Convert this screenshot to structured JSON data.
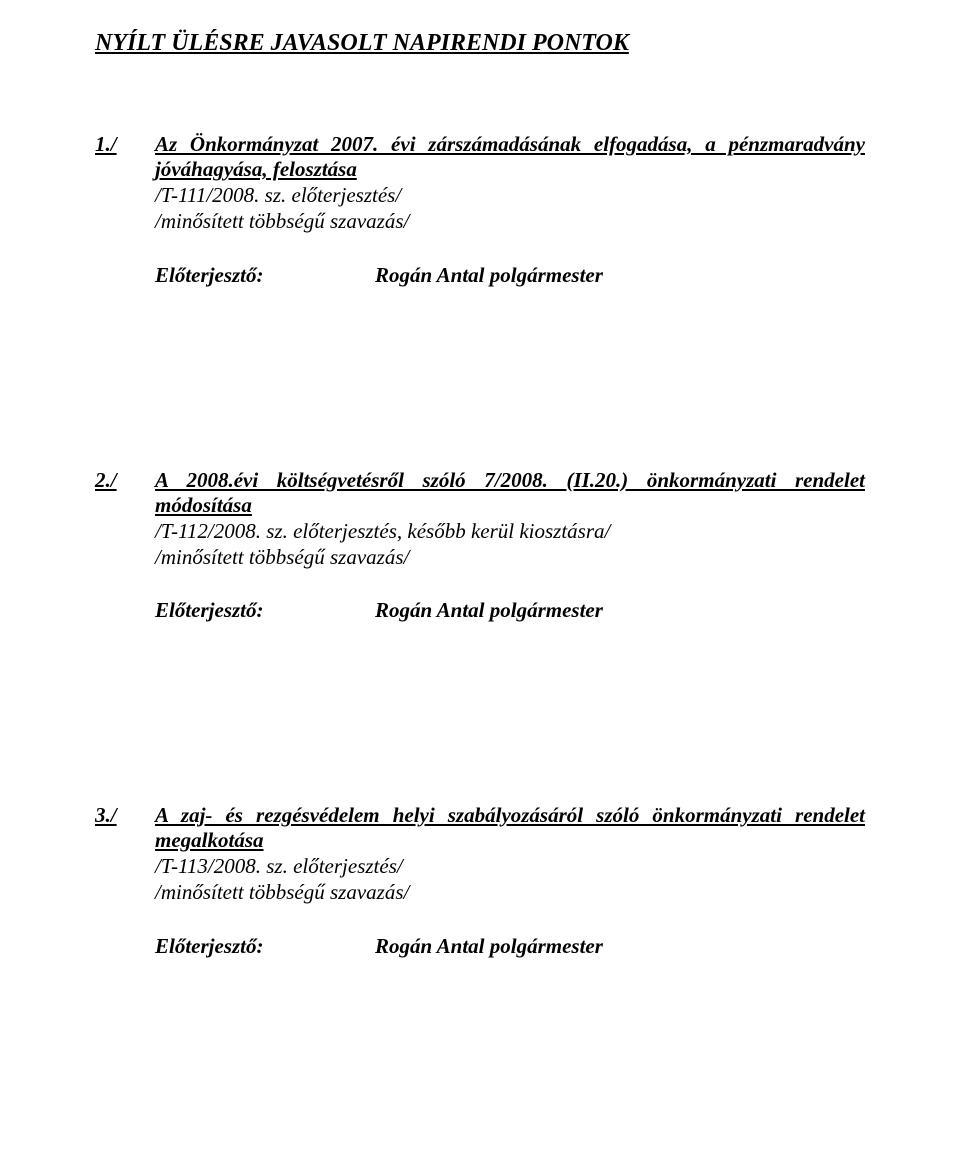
{
  "title": "NYÍLT ÜLÉSRE JAVASOLT NAPIRENDI PONTOK",
  "items": [
    {
      "num": "1./",
      "title": "Az Önkormányzat 2007. évi zárszámadásának elfogadása, a pénzmaradvány jóváhagyása, felosztása",
      "sub1": "/T-111/2008. sz. előterjesztés/",
      "sub2": "/minősített többségű szavazás/",
      "presenter_label": "Előterjesztő:",
      "presenter_value": "Rogán Antal polgármester"
    },
    {
      "num": "2./",
      "title": "A 2008.évi költségvetésről szóló 7/2008. (II.20.) önkormányzati rendelet módosítása",
      "sub1": "/T-112/2008. sz. előterjesztés, később kerül kiosztásra/",
      "sub2": "/minősített többségű szavazás/",
      "presenter_label": "Előterjesztő:",
      "presenter_value": "Rogán Antal polgármester"
    },
    {
      "num": "3./",
      "title": "A zaj- és rezgésvédelem helyi szabályozásáról szóló önkormányzati rendelet megalkotása",
      "sub1": "/T-113/2008. sz. előterjesztés/",
      "sub2": "/minősített többségű szavazás/",
      "presenter_label": "Előterjesztő:",
      "presenter_value": "Rogán Antal polgármester"
    }
  ]
}
